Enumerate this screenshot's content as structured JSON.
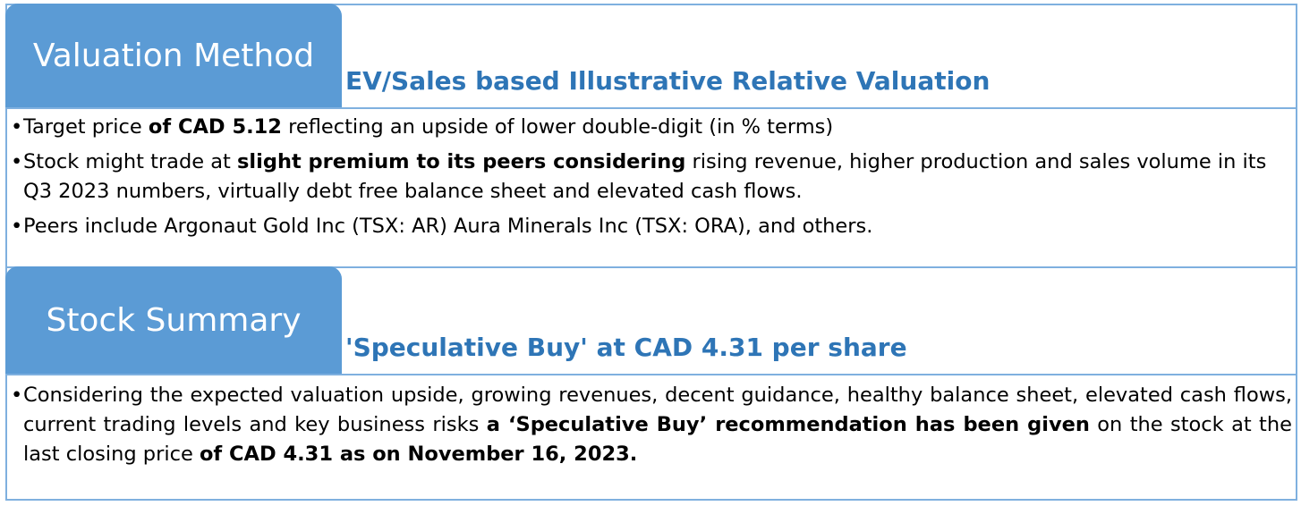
{
  "valuation": {
    "tab_label": "Valuation Method",
    "subtitle": "EV/Sales based Illustrative Relative Valuation",
    "bullet1": {
      "t1": "Target price ",
      "b1": "of CAD 5.12",
      "t2": " reflecting an upside of lower double-digit (in % terms)"
    },
    "bullet2": {
      "t1": "Stock might trade at ",
      "b1": "slight premium to its peers considering",
      "t2": " rising revenue, higher production and sales volume in its Q3 2023 numbers, virtually debt free balance sheet and elevated cash flows."
    },
    "bullet3": {
      "t1": "Peers include Argonaut Gold Inc (TSX: AR) Aura Minerals Inc (TSX: ORA), and others."
    }
  },
  "summary": {
    "tab_label": "Stock Summary",
    "subtitle": "'Speculative Buy' at CAD 4.31 per share",
    "bullet1": {
      "t1": "Considering the expected valuation upside, growing revenues, decent guidance, healthy balance sheet, elevated cash flows, current trading levels and key business risks ",
      "b1": "a ‘Speculative Buy’ recommendation has been given",
      "t2": " on the stock at the last closing price ",
      "b2": "of CAD 4.31 as on November 16, 2023."
    }
  },
  "colors": {
    "tab_fill": "#5b9bd5",
    "border": "#7fb0df",
    "subtitle_text": "#2e75b6"
  }
}
